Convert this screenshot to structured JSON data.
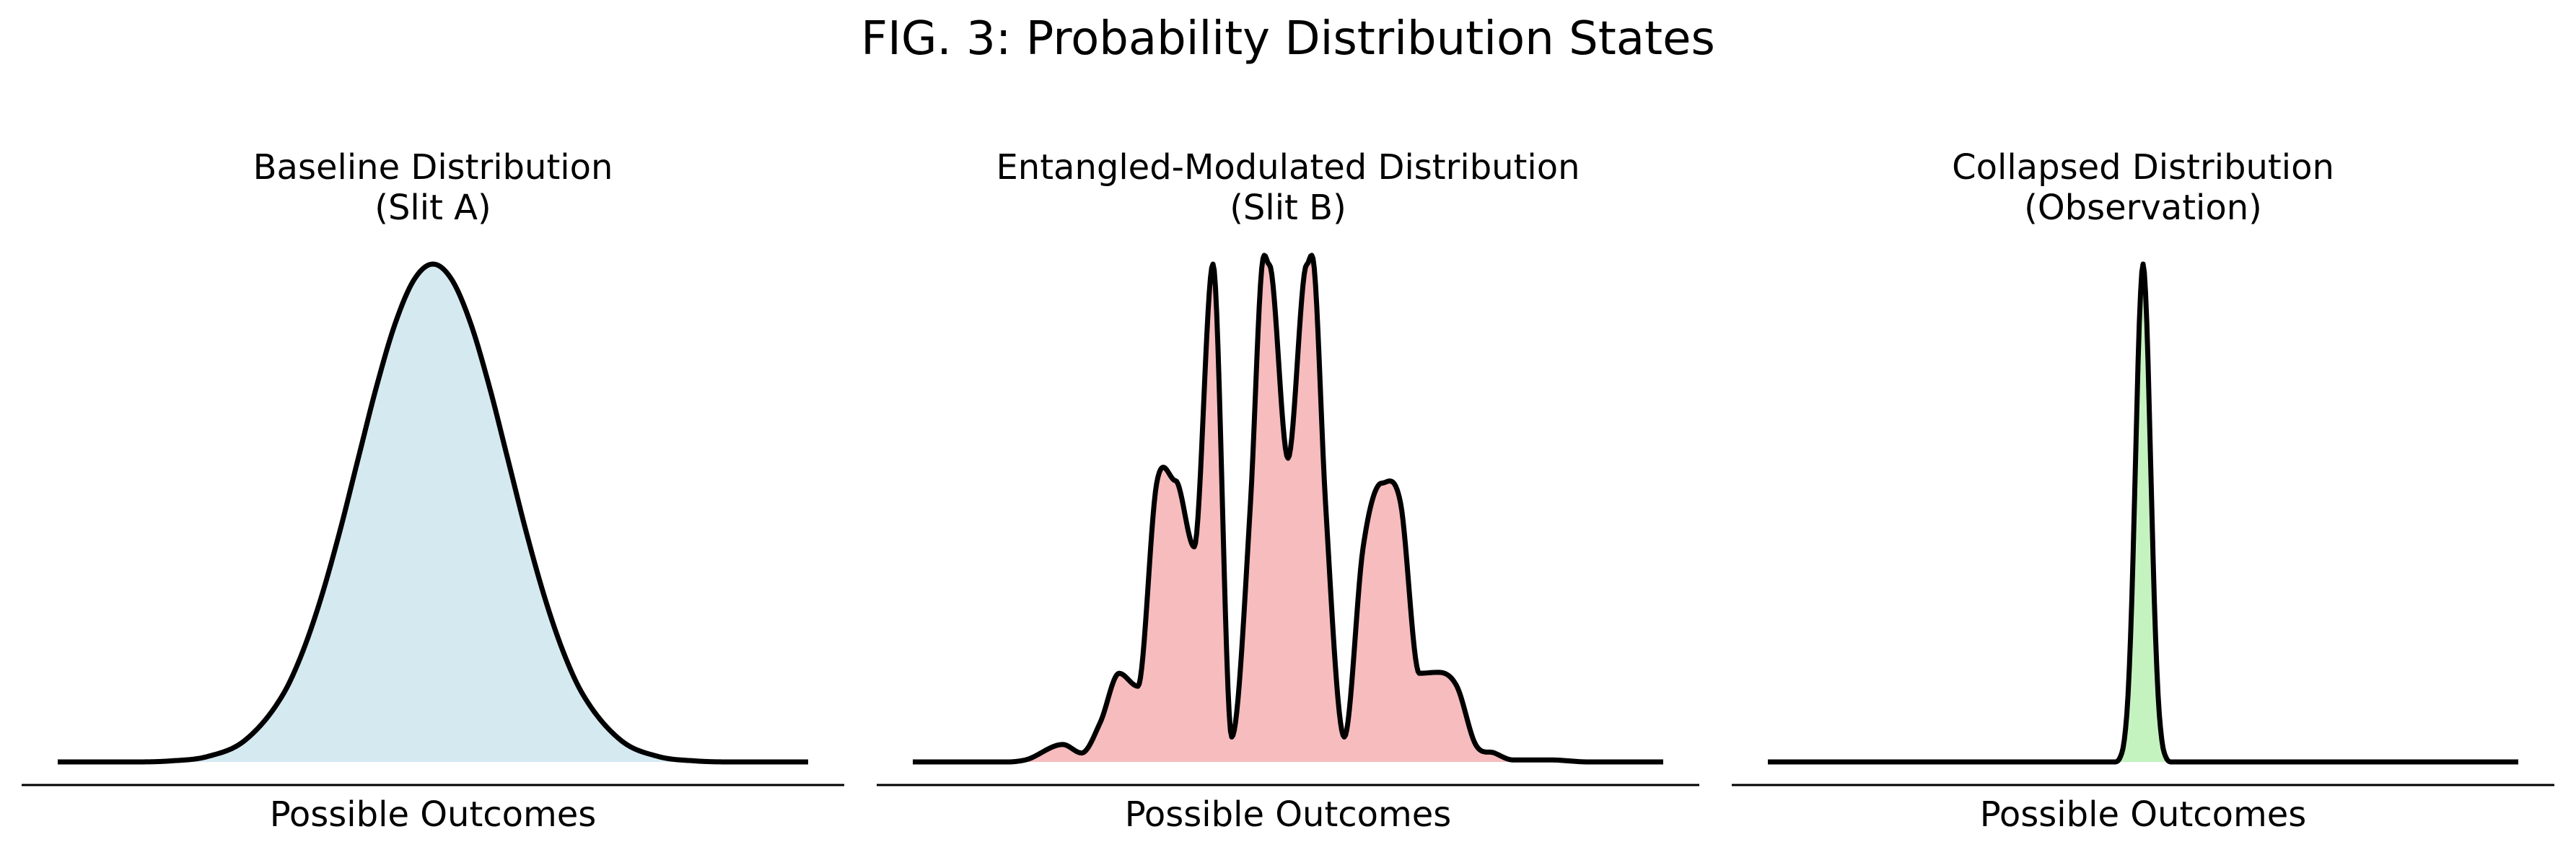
{
  "figure": {
    "title": "FIG. 3: Probability Distribution States"
  },
  "chart_data": [
    {
      "type": "area",
      "title": "Baseline Distribution\n(Slit A)",
      "xlabel": "Possible Outcomes",
      "ylabel": "",
      "grid": false,
      "xlim": [
        -5,
        5
      ],
      "ylim": [
        0,
        1.0
      ],
      "fill_color": "#d5e9f1",
      "line_color": "#000000",
      "series": [
        {
          "x": [
            -5,
            -4.5,
            -4,
            -3.5,
            -3,
            -2.5,
            -2,
            -1.75,
            -1.5,
            -1.25,
            -1,
            -0.75,
            -0.5,
            -0.25,
            0,
            0.25,
            0.5,
            0.75,
            1,
            1.25,
            1.5,
            1.75,
            2,
            2.5,
            3,
            3.5,
            4,
            4.5,
            5
          ],
          "values": [
            0.0,
            0.0,
            0.0,
            0.002,
            0.011,
            0.044,
            0.135,
            0.216,
            0.325,
            0.458,
            0.607,
            0.755,
            0.882,
            0.969,
            1.0,
            0.969,
            0.882,
            0.755,
            0.607,
            0.458,
            0.325,
            0.216,
            0.135,
            0.044,
            0.011,
            0.002,
            0.0,
            0.0,
            0.0
          ]
        }
      ]
    },
    {
      "type": "area",
      "title": "Entangled-Modulated Distribution\n(Slit B)",
      "xlabel": "Possible Outcomes",
      "ylabel": "",
      "grid": false,
      "xlim": [
        -5,
        5
      ],
      "ylim": [
        0,
        1.0
      ],
      "fill_color": "#f6bcbe",
      "line_color": "#000000",
      "series": [
        {
          "x": [
            -5,
            -4.0,
            -3.5,
            -3.0,
            -2.75,
            -2.5,
            -2.25,
            -2.0,
            -1.75,
            -1.5,
            -1.25,
            -1.0,
            -0.75,
            -0.5,
            -0.35,
            -0.25,
            0,
            0.25,
            0.35,
            0.5,
            0.75,
            1.0,
            1.25,
            1.5,
            1.75,
            2.0,
            2.25,
            2.5,
            2.75,
            3.0,
            3.5,
            4.0,
            5
          ],
          "values": [
            0.0,
            0.0,
            0.004,
            0.035,
            0.018,
            0.08,
            0.178,
            0.152,
            0.56,
            0.565,
            0.432,
            1.0,
            0.05,
            0.52,
            0.992,
            0.999,
            0.61,
            0.999,
            0.992,
            0.52,
            0.05,
            0.43,
            0.56,
            0.52,
            0.178,
            0.18,
            0.152,
            0.035,
            0.018,
            0.004,
            0.004,
            0.0,
            0.0
          ]
        }
      ]
    },
    {
      "type": "area",
      "title": "Collapsed Distribution\n(Observation)",
      "xlabel": "Possible Outcomes",
      "ylabel": "",
      "grid": false,
      "xlim": [
        -5,
        5
      ],
      "ylim": [
        0,
        1.0
      ],
      "fill_color": "#c5f3c0",
      "line_color": "#000000",
      "series": [
        {
          "x": [
            -5,
            -0.4,
            -0.3,
            -0.25,
            -0.2,
            -0.15,
            -0.1,
            -0.05,
            0,
            0.05,
            0.1,
            0.15,
            0.2,
            0.25,
            0.3,
            0.4,
            5
          ],
          "values": [
            0.0,
            0.0,
            0.011,
            0.044,
            0.135,
            0.325,
            0.607,
            0.882,
            1.0,
            0.882,
            0.607,
            0.325,
            0.135,
            0.044,
            0.011,
            0.0,
            0.0
          ]
        }
      ]
    }
  ]
}
